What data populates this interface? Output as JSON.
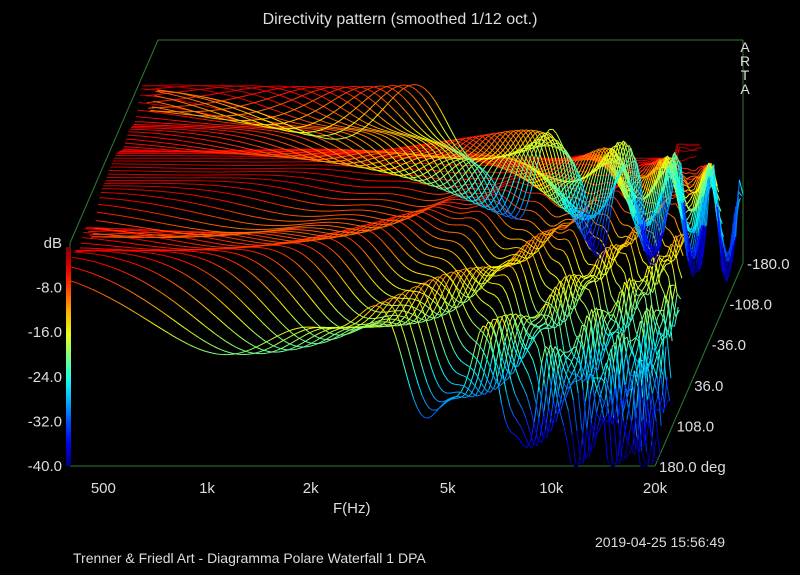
{
  "title": "Directivity pattern (smoothed 1/12 oct.)",
  "arta_label": "ARTA",
  "footer_left": "Trenner & Friedl Art - Diagramma Polare Waterfall 1      DPA",
  "footer_right": "2019-04-25  15:56:49",
  "colors": {
    "axes": "#2e7d32",
    "background": "#000000",
    "text": "#dddddd"
  },
  "chart_data": {
    "type": "waterfall-3d",
    "xlabel": "F(Hz)",
    "ylabel": "dB",
    "zlabel_unit": "deg",
    "x_scale": "log",
    "xlim": [
      400,
      20000
    ],
    "x_ticks": [
      {
        "value": 500,
        "label": "500"
      },
      {
        "value": 1000,
        "label": "1k"
      },
      {
        "value": 2000,
        "label": "2k"
      },
      {
        "value": 5000,
        "label": "5k"
      },
      {
        "value": 10000,
        "label": "10k"
      },
      {
        "value": 20000,
        "label": "20k"
      }
    ],
    "ylim": [
      -40,
      0
    ],
    "y_ticks": [
      {
        "value": -8,
        "label": "-8.0"
      },
      {
        "value": -16,
        "label": "-16.0"
      },
      {
        "value": -24,
        "label": "-24.0"
      },
      {
        "value": -32,
        "label": "-32.0"
      },
      {
        "value": -40,
        "label": "-40.0"
      }
    ],
    "z_ticks": [
      {
        "value": -180,
        "label": "-180.0"
      },
      {
        "value": -108,
        "label": "-108.0"
      },
      {
        "value": -36,
        "label": "-36.0"
      },
      {
        "value": 36,
        "label": "36.0"
      },
      {
        "value": 108,
        "label": "108.0"
      },
      {
        "value": 180,
        "label": "180.0 deg"
      }
    ],
    "zlim": [
      -180,
      180
    ],
    "angle_step_deg": 5,
    "colormap": "jet (blue at -40 dB, red at 0 dB)",
    "grid": false
  }
}
